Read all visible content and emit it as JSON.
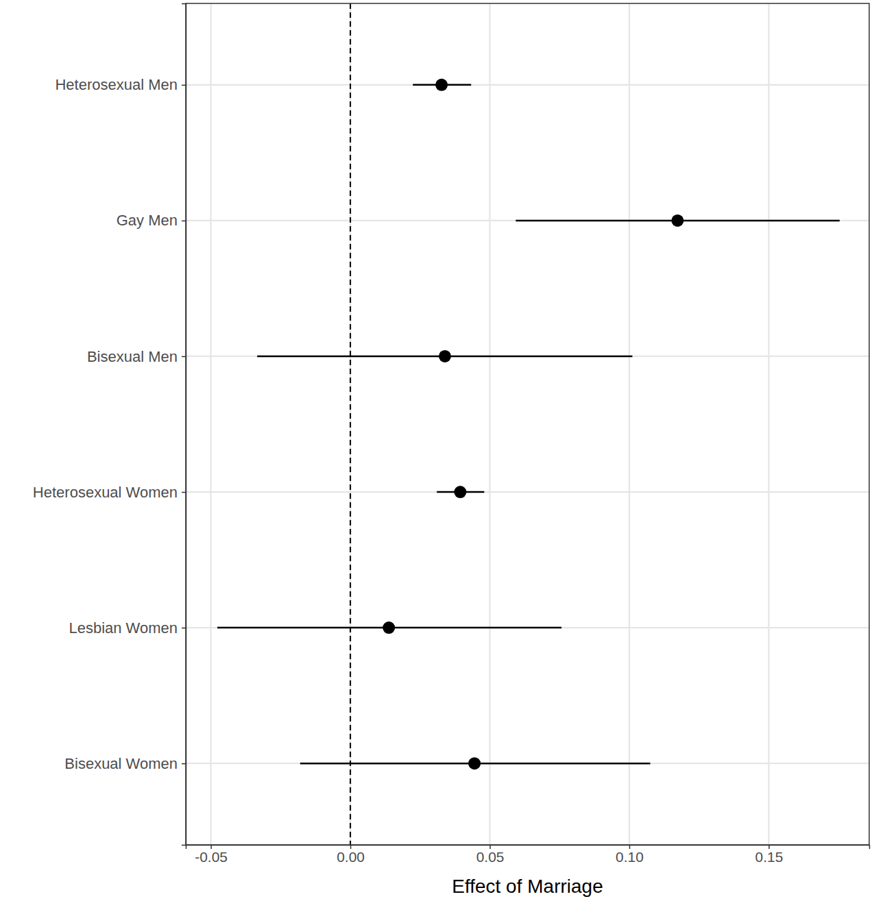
{
  "chart_data": {
    "type": "errorbar",
    "orientation": "horizontal",
    "grid": true,
    "x_label": "Effect of Marriage",
    "categories": [
      "Heterosexual Men",
      "Gay Men",
      "Bisexual Men",
      "Heterosexual Women",
      "Lesbian Women",
      "Bisexual Women"
    ],
    "values": [
      0.0327,
      0.1173,
      0.0339,
      0.0394,
      0.0138,
      0.0445
    ],
    "ci_low": [
      0.0224,
      0.0593,
      -0.0334,
      0.031,
      -0.0477,
      -0.018
    ],
    "ci_high": [
      0.0433,
      0.1754,
      0.1011,
      0.048,
      0.0757,
      0.1075
    ],
    "color": "#000000",
    "reference_line": 0,
    "xlim": [
      -0.059,
      0.186
    ],
    "xticks": [
      {
        "value": -0.05,
        "label": "-0.05"
      },
      {
        "value": 0,
        "label": "0.00"
      },
      {
        "value": 0.05,
        "label": "0.05"
      },
      {
        "value": 0.1,
        "label": "0.10"
      },
      {
        "value": 0.15,
        "label": "0.15"
      }
    ]
  }
}
